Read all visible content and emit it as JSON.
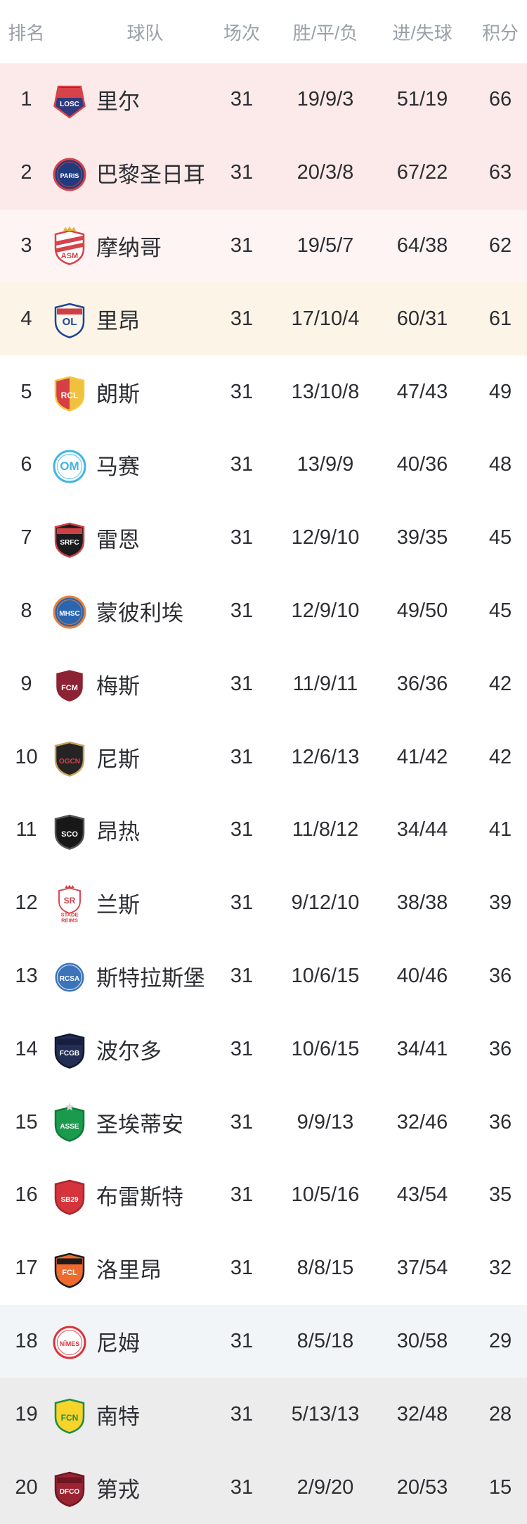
{
  "header": {
    "rank": "排名",
    "team": "球队",
    "played": "场次",
    "record": "胜/平/负",
    "goals": "进/失球",
    "points": "积分"
  },
  "colors": {
    "zones": {
      "cl": "#fbeae9",
      "cl_light": "#fdf4f3",
      "el": "#fcf4e6",
      "none": "#ffffff",
      "playoff": "#f2f5f7",
      "releg": "#edecec"
    },
    "text_dark": "#2c2e33",
    "text_header": "#9aa0a9"
  },
  "rows": [
    {
      "rank": "1",
      "team": "里尔",
      "played": "31",
      "record": "19/9/3",
      "goals": "51/19",
      "points": "66",
      "zone": "cl",
      "logo": {
        "icon": "lille-crest",
        "shape": "pentagon",
        "primary": "#303a7c",
        "secondary": "#d6434b",
        "band": "top",
        "label": "LOSC",
        "label_color": "#ffffff",
        "font": 10
      }
    },
    {
      "rank": "2",
      "team": "巴黎圣日耳曼",
      "played": "31",
      "record": "20/3/8",
      "goals": "67/22",
      "points": "63",
      "zone": "cl",
      "logo": {
        "icon": "psg-crest",
        "shape": "circle",
        "primary": "#213b7f",
        "secondary": "#d6434b",
        "label": "PARIS",
        "label_color": "#ffffff",
        "font": 9
      }
    },
    {
      "rank": "3",
      "team": "摩纳哥",
      "played": "31",
      "record": "19/5/7",
      "goals": "64/38",
      "points": "62",
      "zone": "cl_light",
      "logo": {
        "icon": "monaco-crest",
        "shape": "shield",
        "primary": "#ffffff",
        "secondary": "#d6434b",
        "band": "diag",
        "topper": "crown",
        "topper_color": "#dfb43c",
        "label": "ASM",
        "label_color": "#d6434b",
        "font": 11,
        "label_y": 46
      }
    },
    {
      "rank": "4",
      "team": "里昂",
      "played": "31",
      "record": "17/10/4",
      "goals": "60/31",
      "points": "61",
      "zone": "el",
      "logo": {
        "icon": "lyon-crest",
        "shape": "shield",
        "primary": "#faf6ec",
        "secondary": "#1d4596",
        "band": "top",
        "band_color": "#cf4046",
        "label": "OL",
        "label_color": "#1d4596",
        "font": 15
      }
    },
    {
      "rank": "5",
      "team": "朗斯",
      "played": "31",
      "record": "13/10/8",
      "goals": "47/43",
      "points": "49",
      "zone": "none",
      "logo": {
        "icon": "lens-crest",
        "shape": "shield",
        "primary": "#d63f44",
        "secondary": "#f2c83e",
        "split": "v",
        "label": "RCL",
        "label_color": "#ffffff",
        "font": 12
      }
    },
    {
      "rank": "6",
      "team": "马赛",
      "played": "31",
      "record": "13/9/9",
      "goals": "40/36",
      "points": "48",
      "zone": "none",
      "logo": {
        "icon": "marseille-crest",
        "shape": "circle",
        "primary": "#ffffff",
        "secondary": "#45b4e5",
        "label": "OM",
        "label_color": "#45b4e5",
        "font": 17
      }
    },
    {
      "rank": "7",
      "team": "雷恩",
      "played": "31",
      "record": "12/9/10",
      "goals": "39/35",
      "points": "45",
      "zone": "none",
      "logo": {
        "icon": "rennes-crest",
        "shape": "shield",
        "primary": "#1b1b1d",
        "secondary": "#cf4046",
        "band": "top",
        "label": "SRFC",
        "label_color": "#ffffff",
        "font": 10
      }
    },
    {
      "rank": "8",
      "team": "蒙彼利埃",
      "played": "31",
      "record": "12/9/10",
      "goals": "49/50",
      "points": "45",
      "zone": "none",
      "logo": {
        "icon": "montpellier-crest",
        "shape": "circle",
        "primary": "#2a65b0",
        "secondary": "#e5823d",
        "label": "MHSC",
        "label_color": "#ffffff",
        "font": 10
      }
    },
    {
      "rank": "9",
      "team": "梅斯",
      "played": "31",
      "record": "11/9/11",
      "goals": "36/36",
      "points": "42",
      "zone": "none",
      "logo": {
        "icon": "metz-crest",
        "shape": "shield",
        "primary": "#8c2233",
        "secondary": "#ffffff",
        "label": "FCM",
        "label_color": "#ffffff",
        "font": 11
      }
    },
    {
      "rank": "10",
      "team": "尼斯",
      "played": "31",
      "record": "12/6/13",
      "goals": "41/42",
      "points": "42",
      "zone": "none",
      "logo": {
        "icon": "nice-crest",
        "shape": "shield",
        "primary": "#242424",
        "secondary": "#c8a35f",
        "label": "OGCN",
        "label_color": "#d6434b",
        "font": 10
      }
    },
    {
      "rank": "11",
      "team": "昂热",
      "played": "31",
      "record": "11/8/12",
      "goals": "34/44",
      "points": "41",
      "zone": "none",
      "logo": {
        "icon": "angers-crest",
        "shape": "shield",
        "primary": "#181818",
        "secondary": "#555555",
        "label": "SCO",
        "label_color": "#ffffff",
        "font": 11
      }
    },
    {
      "rank": "12",
      "team": "兰斯",
      "played": "31",
      "record": "9/12/10",
      "goals": "38/38",
      "points": "39",
      "zone": "none",
      "logo": {
        "icon": "reims-crest",
        "shape": "shield",
        "primary": "#ffffff",
        "secondary": "#d6434b",
        "topper": "crown",
        "topper_color": "#d6434b",
        "label": "SR",
        "label_color": "#d6434b",
        "font": 12,
        "sub": [
          "STADE",
          "REIMS"
        ]
      }
    },
    {
      "rank": "13",
      "team": "斯特拉斯堡",
      "played": "31",
      "record": "10/6/15",
      "goals": "40/46",
      "points": "36",
      "zone": "none",
      "logo": {
        "icon": "strasbourg-crest",
        "shape": "circle",
        "primary": "#3c74b9",
        "secondary": "#ffffff",
        "label": "RCSA",
        "label_color": "#ffffff",
        "font": 10
      }
    },
    {
      "rank": "14",
      "team": "波尔多",
      "played": "31",
      "record": "10/6/15",
      "goals": "34/41",
      "points": "36",
      "zone": "none",
      "logo": {
        "icon": "bordeaux-crest",
        "shape": "shield",
        "primary": "#232d55",
        "secondary": "#11182f",
        "band": "top",
        "band_color": "#161f3d",
        "label": "FCGB",
        "label_color": "#ffffff",
        "font": 10
      }
    },
    {
      "rank": "15",
      "team": "圣埃蒂安",
      "played": "31",
      "record": "9/9/13",
      "goals": "32/46",
      "points": "36",
      "zone": "none",
      "logo": {
        "icon": "saint-etienne-crest",
        "shape": "shield",
        "primary": "#1a9a4d",
        "secondary": "#0f7a38",
        "topper": "star",
        "topper_color": "#d8d8d8",
        "label": "ASSE",
        "label_color": "#ffffff",
        "font": 10
      }
    },
    {
      "rank": "16",
      "team": "布雷斯特",
      "played": "31",
      "record": "10/5/16",
      "goals": "43/54",
      "points": "35",
      "zone": "none",
      "logo": {
        "icon": "brest-crest",
        "shape": "shield",
        "primary": "#d6343c",
        "secondary": "#a8262c",
        "label": "SB29",
        "label_color": "#ffffff",
        "font": 10
      }
    },
    {
      "rank": "17",
      "team": "洛里昂",
      "played": "31",
      "record": "8/8/15",
      "goals": "37/54",
      "points": "32",
      "zone": "none",
      "logo": {
        "icon": "lorient-crest",
        "shape": "shield",
        "primary": "#ee6a2d",
        "secondary": "#1c1c1c",
        "band": "top",
        "label": "FCL",
        "label_color": "#ffffff",
        "font": 11
      }
    },
    {
      "rank": "18",
      "team": "尼姆",
      "played": "31",
      "record": "8/5/18",
      "goals": "30/58",
      "points": "29",
      "zone": "playoff",
      "logo": {
        "icon": "nimes-crest",
        "shape": "circle",
        "primary": "#ffffff",
        "secondary": "#d6343c",
        "label": "NÎMES",
        "label_color": "#d6343c",
        "font": 9
      }
    },
    {
      "rank": "19",
      "team": "南特",
      "played": "31",
      "record": "5/13/13",
      "goals": "32/48",
      "points": "28",
      "zone": "releg",
      "logo": {
        "icon": "nantes-crest",
        "shape": "shield",
        "primary": "#f8d32a",
        "secondary": "#1e8e46",
        "label": "FCN",
        "label_color": "#1e8e46",
        "font": 12
      }
    },
    {
      "rank": "20",
      "team": "第戎",
      "played": "31",
      "record": "2/9/20",
      "goals": "20/53",
      "points": "15",
      "zone": "releg",
      "logo": {
        "icon": "dijon-crest",
        "shape": "shield",
        "primary": "#9c2332",
        "secondary": "#6d1722",
        "band": "top",
        "label": "DFCO",
        "label_color": "#ffffff",
        "font": 10
      }
    }
  ]
}
